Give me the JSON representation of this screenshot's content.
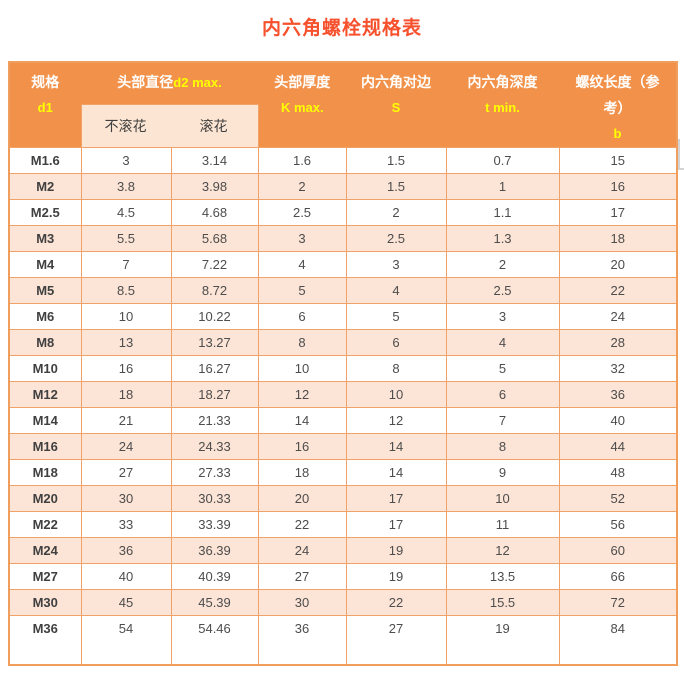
{
  "title": "内六角螺栓规格表",
  "table": {
    "columns": {
      "spec": {
        "line1": "规格",
        "line2": "d1"
      },
      "head_diameter": {
        "title_zh": "头部直径",
        "title_latin": "d2 max.",
        "sub_left": "不滚花",
        "sub_right": "滚花"
      },
      "head_thickness": {
        "line1": "头部厚度",
        "line2": "K max."
      },
      "hex_across_flats": {
        "line1": "内六角对边",
        "line2": "S"
      },
      "hex_depth": {
        "line1": "内六角深度",
        "line2": "t min."
      },
      "thread_length": {
        "line1": "螺纹长度（参",
        "line2": "考）",
        "line3": "b"
      }
    },
    "rows": [
      [
        "M1.6",
        "3",
        "3.14",
        "1.6",
        "1.5",
        "0.7",
        "15"
      ],
      [
        "M2",
        "3.8",
        "3.98",
        "2",
        "1.5",
        "1",
        "16"
      ],
      [
        "M2.5",
        "4.5",
        "4.68",
        "2.5",
        "2",
        "1.1",
        "17"
      ],
      [
        "M3",
        "5.5",
        "5.68",
        "3",
        "2.5",
        "1.3",
        "18"
      ],
      [
        "M4",
        "7",
        "7.22",
        "4",
        "3",
        "2",
        "20"
      ],
      [
        "M5",
        "8.5",
        "8.72",
        "5",
        "4",
        "2.5",
        "22"
      ],
      [
        "M6",
        "10",
        "10.22",
        "6",
        "5",
        "3",
        "24"
      ],
      [
        "M8",
        "13",
        "13.27",
        "8",
        "6",
        "4",
        "28"
      ],
      [
        "M10",
        "16",
        "16.27",
        "10",
        "8",
        "5",
        "32"
      ],
      [
        "M12",
        "18",
        "18.27",
        "12",
        "10",
        "6",
        "36"
      ],
      [
        "M14",
        "21",
        "21.33",
        "14",
        "12",
        "7",
        "40"
      ],
      [
        "M16",
        "24",
        "24.33",
        "16",
        "14",
        "8",
        "44"
      ],
      [
        "M18",
        "27",
        "27.33",
        "18",
        "14",
        "9",
        "48"
      ],
      [
        "M20",
        "30",
        "30.33",
        "20",
        "17",
        "10",
        "52"
      ],
      [
        "M22",
        "33",
        "33.39",
        "22",
        "17",
        "11",
        "56"
      ],
      [
        "M24",
        "36",
        "36.39",
        "24",
        "19",
        "12",
        "60"
      ],
      [
        "M27",
        "40",
        "40.39",
        "27",
        "19",
        "13.5",
        "66"
      ],
      [
        "M30",
        "45",
        "45.39",
        "30",
        "22",
        "15.5",
        "72"
      ],
      [
        "M36",
        "54",
        "54.46",
        "36",
        "27",
        "19",
        "84"
      ]
    ]
  },
  "colors": {
    "title_text": "#f6502c",
    "header_bg": "#f2914a",
    "header_text_zh": "#ffffff",
    "header_text_latin": "#ffff00",
    "subheader_bg": "#fce5d3",
    "row_alt_bg": "#fce4d6",
    "grid_border": "#f0a269",
    "cell_text": "#4d4d4d"
  }
}
